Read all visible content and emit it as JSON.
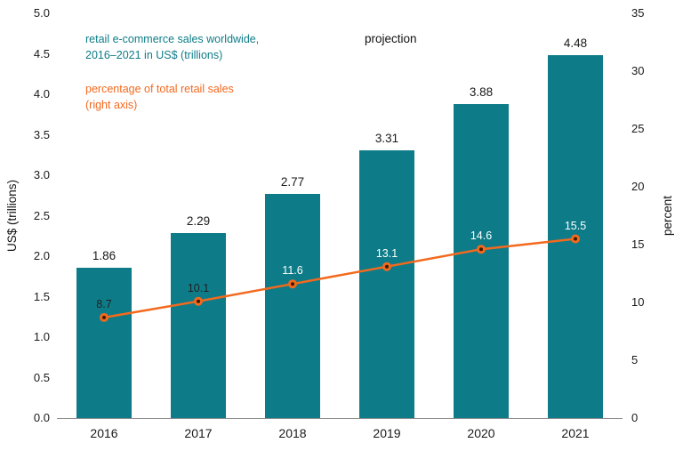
{
  "chart_data": {
    "type": "bar",
    "categories": [
      "2016",
      "2017",
      "2018",
      "2019",
      "2020",
      "2021"
    ],
    "series": [
      {
        "name": "retail e-commerce sales worldwide (US$ trillions)",
        "type": "bar",
        "axis": "left",
        "color": "#0e7c88",
        "values": [
          1.86,
          2.29,
          2.77,
          3.31,
          3.88,
          4.48
        ],
        "labels": [
          "1.86",
          "2.29",
          "2.77",
          "3.31",
          "3.88",
          "4.48"
        ]
      },
      {
        "name": "percentage of total retail sales",
        "type": "line",
        "axis": "right",
        "color": "#f3691e",
        "values": [
          8.7,
          10.1,
          11.6,
          13.1,
          14.6,
          15.5
        ],
        "labels": [
          "8.7",
          "10.1",
          "11.6",
          "13.1",
          "14.6",
          "15.5"
        ],
        "label_colors": [
          "#1f1f1f",
          "#1f1f1f",
          "#ffffff",
          "#ffffff",
          "#ffffff",
          "#ffffff"
        ],
        "marker_center_color": "#3a1d00"
      }
    ],
    "left_axis": {
      "label": "US$ (trillions)",
      "min": 0,
      "max": 5,
      "step": 0.5,
      "ticks": [
        "0.0",
        "0.5",
        "1.0",
        "1.5",
        "2.0",
        "2.5",
        "3.0",
        "3.5",
        "4.0",
        "4.5",
        "5.0"
      ]
    },
    "right_axis": {
      "label": "percent",
      "min": 0,
      "max": 35,
      "step": 5,
      "ticks": [
        "0",
        "5",
        "10",
        "15",
        "20",
        "25",
        "30",
        "35"
      ]
    },
    "grid": false,
    "legend_position": "top-left",
    "title": "",
    "annotations": {
      "projection": "projection"
    },
    "legend": {
      "bar_label": "retail e-commerce sales worldwide,\n2016–2021 in US$ (trillions)",
      "bar_label_color": "#0e7c88",
      "line_label": "percentage of total retail sales\n(right axis)",
      "line_label_color": "#f3691e"
    }
  }
}
